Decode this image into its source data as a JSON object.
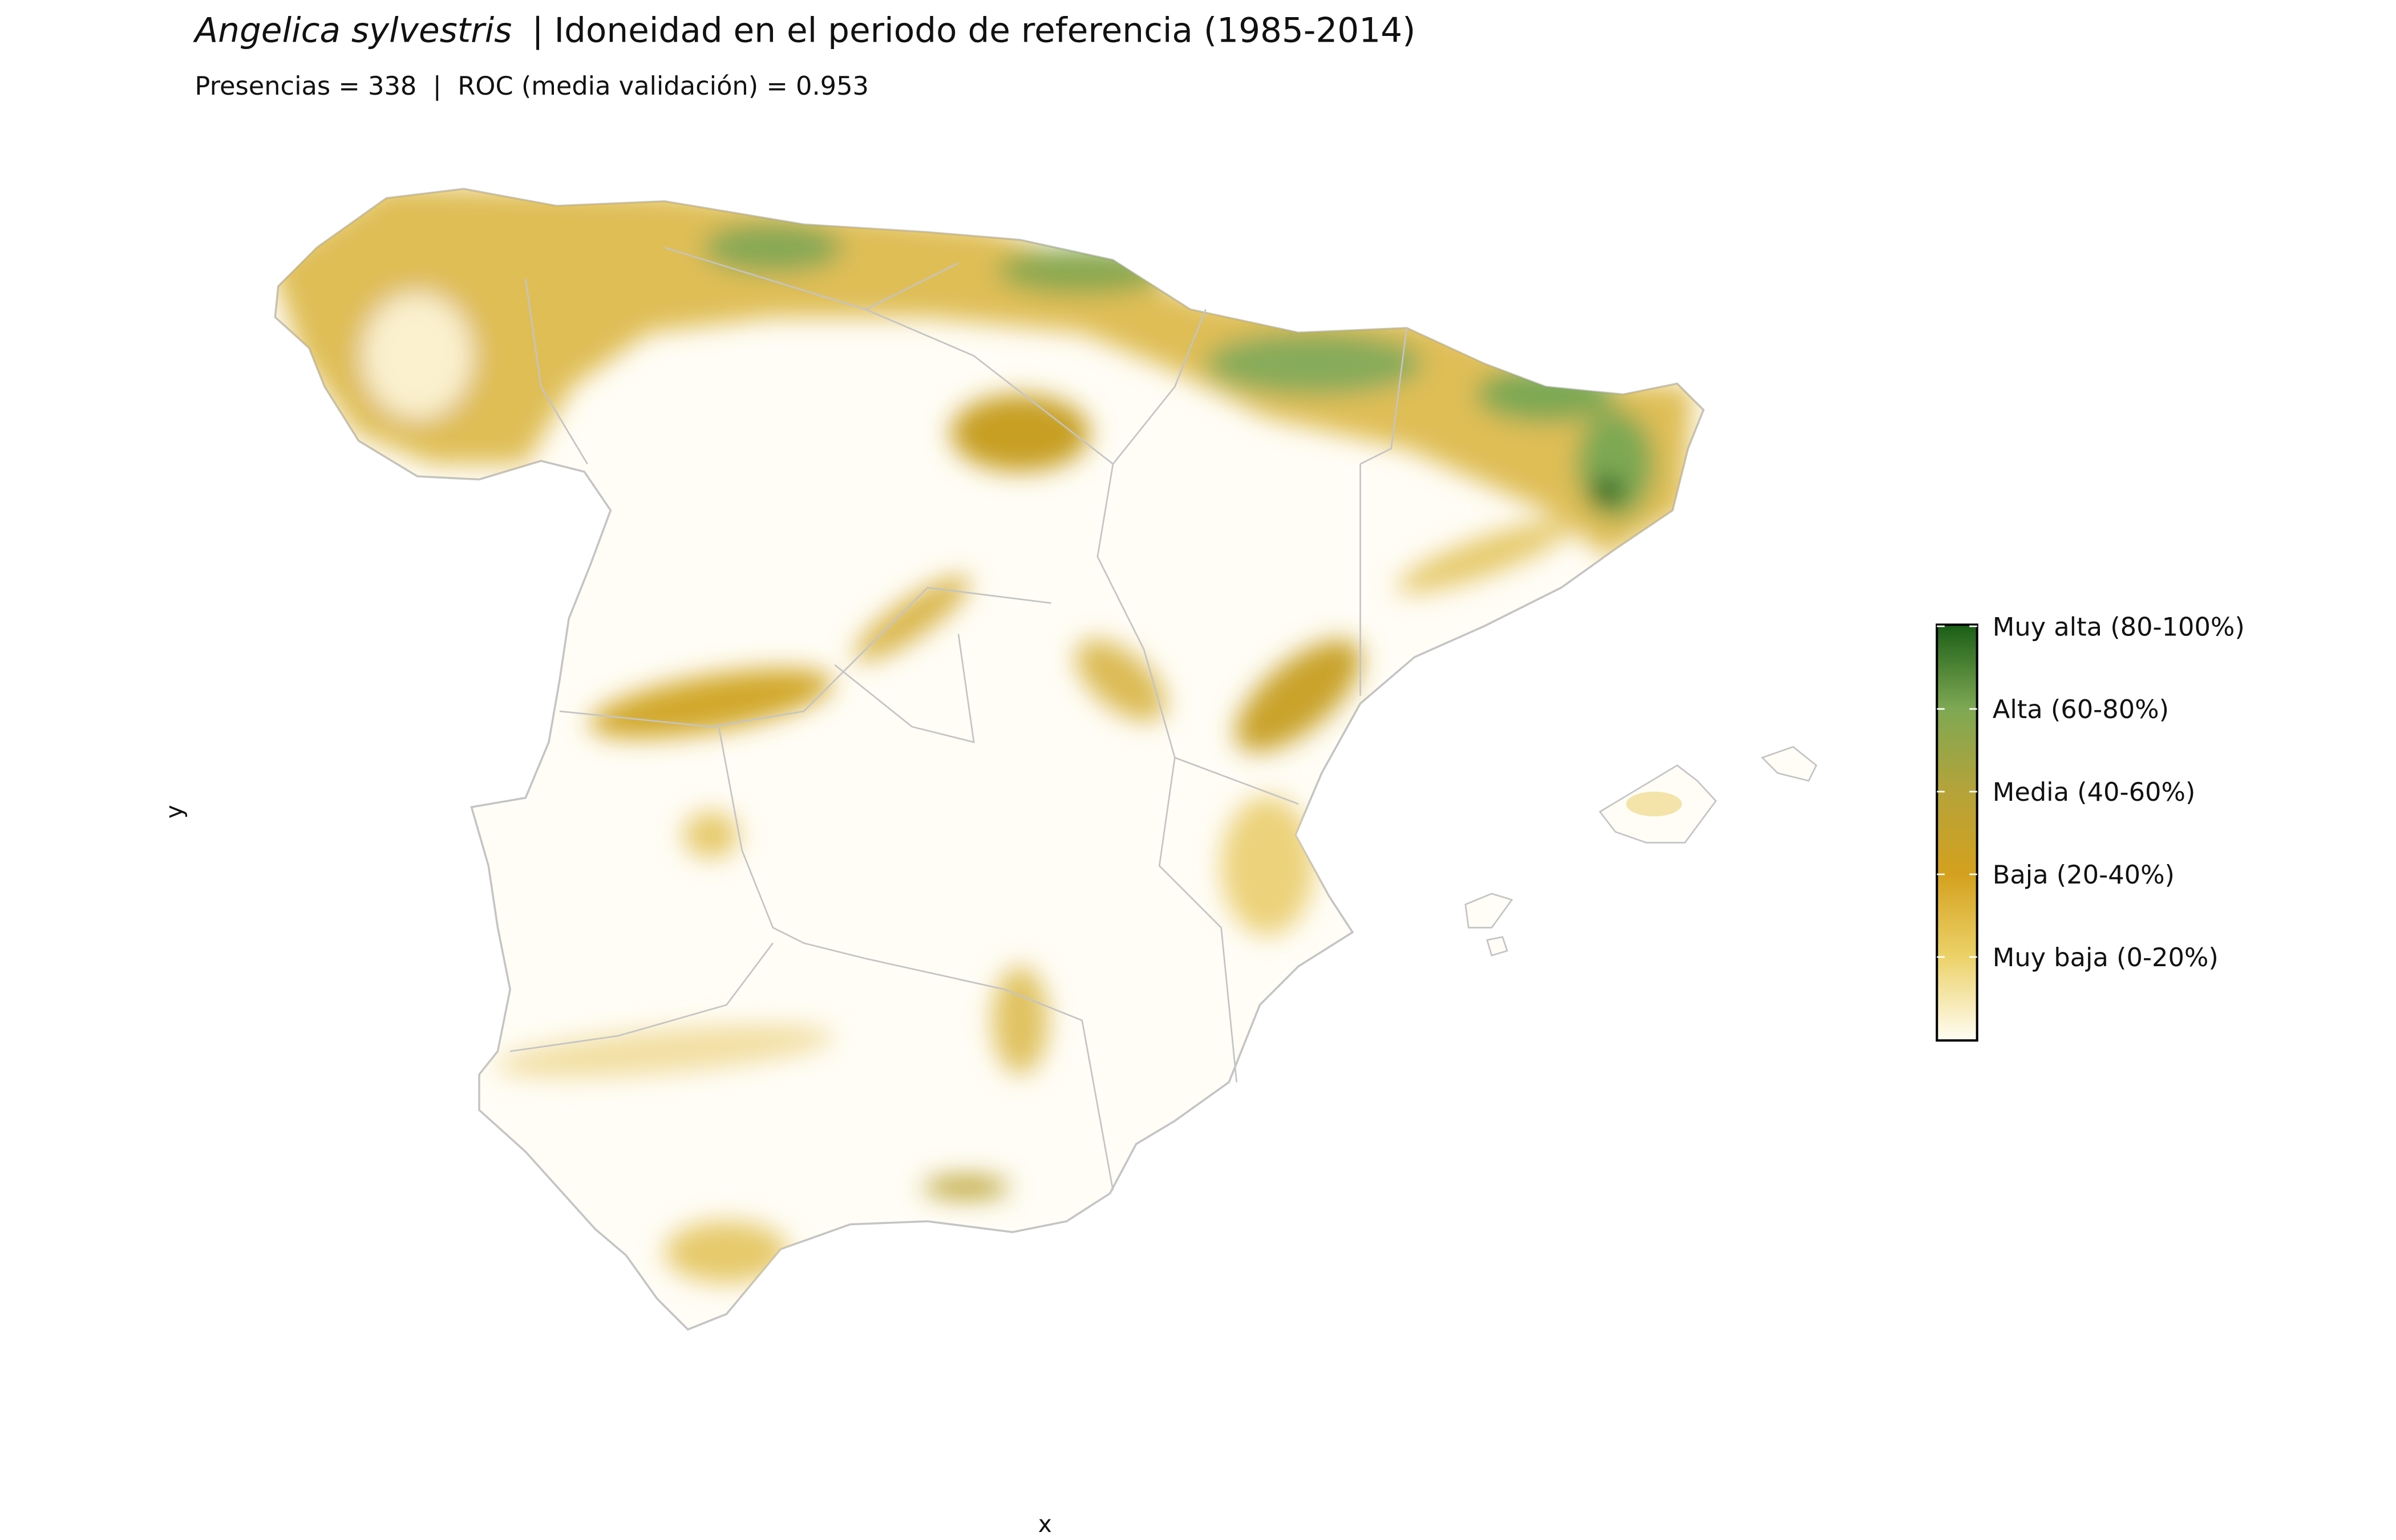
{
  "header": {
    "species": "Angelica sylvestris",
    "title": "| Idoneidad en el periodo de referencia (1985-2014)",
    "subtitle": "Presencias = 338  |  ROC (media validación) = 0.953"
  },
  "axes": {
    "x_label": "x",
    "y_label": "y"
  },
  "legend": {
    "labels": [
      "Muy alta (80-100%)",
      "Alta (60-80%)",
      "Media (40-60%)",
      "Baja (20-40%)",
      "Muy baja (0-20%)"
    ],
    "colors": [
      "#1b5e17",
      "#7ea853",
      "#b5a33a",
      "#d4a11e",
      "#ecd26a",
      "#fffdf3"
    ]
  }
}
